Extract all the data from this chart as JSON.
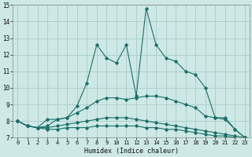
{
  "xlabel": "Humidex (Indice chaleur)",
  "xlim": [
    -0.5,
    23.5
  ],
  "ylim": [
    7,
    15
  ],
  "yticks": [
    7,
    8,
    9,
    10,
    11,
    12,
    13,
    14,
    15
  ],
  "xticks": [
    0,
    1,
    2,
    3,
    4,
    5,
    6,
    7,
    8,
    9,
    10,
    11,
    12,
    13,
    14,
    15,
    16,
    17,
    18,
    19,
    20,
    21,
    22,
    23
  ],
  "bg_color": "#cde8e5",
  "grid_color": "#a8ccca",
  "line_color": "#1a7068",
  "lines": [
    {
      "x": [
        0,
        1,
        2,
        3,
        4,
        5,
        6,
        7,
        8,
        9,
        10,
        11,
        12,
        13,
        14,
        15,
        16,
        17,
        18,
        19,
        20,
        21,
        22,
        23
      ],
      "y": [
        8.0,
        7.7,
        7.6,
        7.5,
        7.5,
        7.6,
        7.6,
        7.6,
        7.7,
        7.7,
        7.7,
        7.7,
        7.7,
        7.6,
        7.6,
        7.5,
        7.5,
        7.4,
        7.3,
        7.2,
        7.1,
        7.1,
        7.0,
        6.9
      ]
    },
    {
      "x": [
        0,
        1,
        2,
        3,
        4,
        5,
        6,
        7,
        8,
        9,
        10,
        11,
        12,
        13,
        14,
        15,
        16,
        17,
        18,
        19,
        20,
        21,
        22,
        23
      ],
      "y": [
        8.0,
        7.7,
        7.6,
        7.6,
        7.7,
        7.8,
        7.9,
        8.0,
        8.1,
        8.2,
        8.2,
        8.2,
        8.1,
        8.0,
        7.9,
        7.8,
        7.7,
        7.6,
        7.5,
        7.4,
        7.3,
        7.2,
        7.1,
        7.0
      ]
    },
    {
      "x": [
        0,
        1,
        2,
        3,
        4,
        5,
        6,
        7,
        8,
        9,
        10,
        11,
        12,
        13,
        14,
        15,
        16,
        17,
        18,
        19,
        20,
        21,
        22,
        23
      ],
      "y": [
        8.0,
        7.7,
        7.6,
        7.7,
        8.1,
        8.2,
        8.5,
        8.8,
        9.2,
        9.4,
        9.4,
        9.3,
        9.4,
        9.5,
        9.5,
        9.4,
        9.2,
        9.0,
        8.8,
        8.3,
        8.2,
        8.2,
        7.5,
        7.0
      ]
    },
    {
      "x": [
        0,
        1,
        2,
        3,
        4,
        5,
        6,
        7,
        8,
        9,
        10,
        11,
        12,
        13,
        14,
        15,
        16,
        17,
        18,
        19,
        20,
        21,
        22,
        23
      ],
      "y": [
        8.0,
        7.7,
        7.6,
        8.1,
        8.1,
        8.2,
        8.9,
        10.3,
        12.6,
        11.8,
        11.5,
        12.6,
        9.5,
        14.8,
        12.6,
        11.8,
        11.6,
        11.0,
        10.8,
        10.0,
        8.2,
        8.1,
        7.5,
        7.0
      ]
    }
  ]
}
